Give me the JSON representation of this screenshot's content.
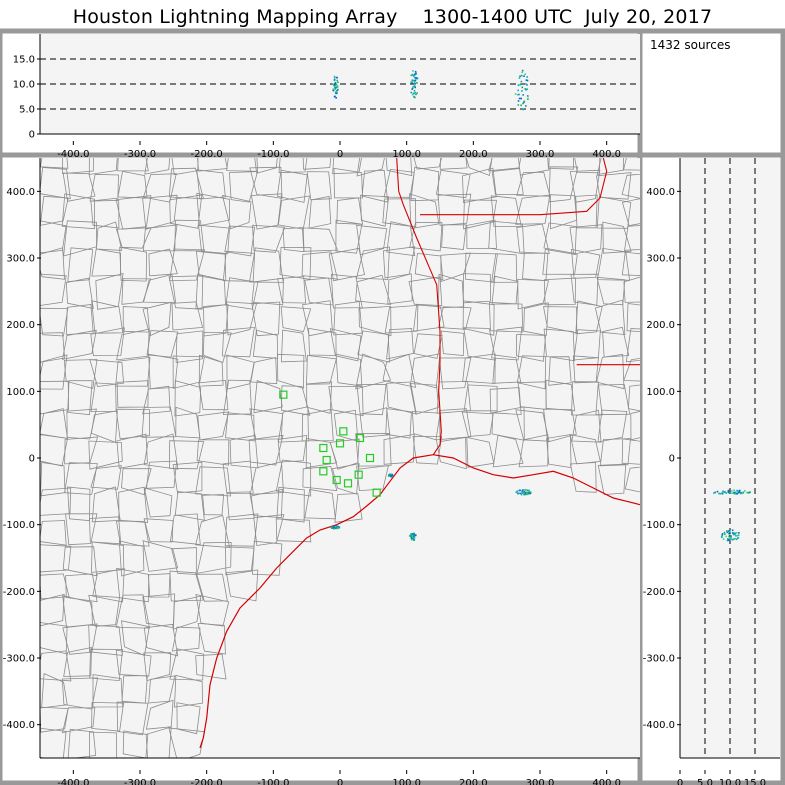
{
  "title": "Houston Lightning Mapping Array    1300-1400 UTC  July 20, 2017",
  "source_count": "1432 sources",
  "colors": {
    "frame": "#999999",
    "plot_bg": "#f4f4f4",
    "county": "#8c8c8c",
    "coast": "#d40000",
    "station": "#22cc22"
  },
  "chart_data": [
    {
      "panel": "altitude-vs-x",
      "type": "scatter",
      "xlim": [
        -450,
        450
      ],
      "ylim": [
        0,
        20
      ],
      "x_ticks": [
        "-400.0",
        "-300.0",
        "-200.0",
        "-100.0",
        "0",
        "100.0",
        "200.0",
        "300.0",
        "400.0"
      ],
      "y_ticks": [
        "0",
        "5.0",
        "10.0",
        "15.0"
      ],
      "reference_lines": [
        5,
        10,
        15
      ],
      "clusters": [
        {
          "x": -8,
          "z": 9.5,
          "dx": 4,
          "dz": 2.5
        },
        {
          "x": 110,
          "z": 10,
          "dx": 6,
          "dz": 3
        },
        {
          "x": 272,
          "z": 9,
          "dx": 10,
          "dz": 4
        }
      ]
    },
    {
      "panel": "plan-view-map",
      "type": "scatter",
      "xlim": [
        -450,
        450
      ],
      "ylim": [
        -450,
        450
      ],
      "x_ticks": [
        "-400.0",
        "-300.0",
        "-200.0",
        "-100.0",
        "0",
        "100.0",
        "200.0",
        "300.0",
        "400.0"
      ],
      "y_ticks": [
        "400.0",
        "300.0",
        "200.0",
        "100.0",
        "0",
        "-100.0",
        "-200.0",
        "-300.0",
        "-400.0"
      ],
      "stations": [
        [
          -85,
          95
        ],
        [
          -25,
          15
        ],
        [
          5,
          40
        ],
        [
          30,
          30
        ],
        [
          45,
          0
        ],
        [
          -25,
          -20
        ],
        [
          -5,
          -33
        ],
        [
          12,
          -38
        ],
        [
          28,
          -25
        ],
        [
          -20,
          -3
        ],
        [
          0,
          22
        ],
        [
          55,
          -52
        ]
      ],
      "clusters": [
        {
          "x": 108,
          "y": -117,
          "dx": 5,
          "dy": 6
        },
        {
          "x": 275,
          "y": -50,
          "dx": 12,
          "dy": 4
        },
        {
          "x": -8,
          "y": -103,
          "dx": 6,
          "dy": 2
        },
        {
          "x": 75,
          "y": -25,
          "dx": 3,
          "dy": 2
        }
      ]
    },
    {
      "panel": "y-vs-altitude",
      "type": "scatter",
      "xlim": [
        0,
        20
      ],
      "ylim": [
        -450,
        450
      ],
      "x_ticks": [
        "0",
        "5.0",
        "10.0",
        "15.0"
      ],
      "y_ticks": [
        "400.0",
        "300.0",
        "200.0",
        "100.0",
        "0",
        "-100.0",
        "-200.0",
        "-300.0",
        "-400.0"
      ],
      "reference_lines": [
        5,
        10,
        15
      ],
      "clusters": [
        {
          "z": 10,
          "y": -115,
          "dz": 2,
          "dy": 8
        },
        {
          "z": 10,
          "y": -50,
          "dz": 4,
          "dy": 3
        }
      ]
    }
  ]
}
